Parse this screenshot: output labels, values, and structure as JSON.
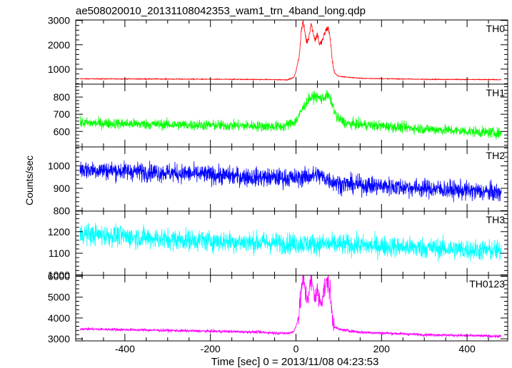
{
  "chart_data": {
    "type": "line",
    "title": "ae508020010_20131108042353_wam1_trn_4band_long.qdp",
    "xlabel": "Time [sec] 0 = 2013/11/08 04:23:53",
    "ylabel": "Counts/sec",
    "xlim": [
      -515,
      495
    ],
    "x_ticks": [
      -400,
      -200,
      0,
      200,
      400
    ],
    "grid": false,
    "legend": "none",
    "panels": [
      {
        "name": "TH0",
        "color": "#ff0000",
        "ylim": [
          380,
          3020
        ],
        "y_ticks": [
          1000,
          2000,
          3000
        ],
        "noise": 12,
        "points": [
          [
            -505,
            600
          ],
          [
            -300,
            590
          ],
          [
            -100,
            575
          ],
          [
            -20,
            560
          ],
          [
            -5,
            650
          ],
          [
            0,
            900
          ],
          [
            8,
            1600
          ],
          [
            12,
            2500
          ],
          [
            16,
            2950
          ],
          [
            20,
            2600
          ],
          [
            25,
            2100
          ],
          [
            30,
            2300
          ],
          [
            35,
            2900
          ],
          [
            40,
            2500
          ],
          [
            45,
            2200
          ],
          [
            50,
            2450
          ],
          [
            55,
            2000
          ],
          [
            60,
            2100
          ],
          [
            65,
            2350
          ],
          [
            70,
            2600
          ],
          [
            75,
            2700
          ],
          [
            80,
            2300
          ],
          [
            85,
            1300
          ],
          [
            90,
            850
          ],
          [
            100,
            700
          ],
          [
            150,
            620
          ],
          [
            300,
            580
          ],
          [
            480,
            565
          ]
        ]
      },
      {
        "name": "TH1",
        "color": "#00ff00",
        "ylim": [
          510,
          875
        ],
        "y_ticks": [
          600,
          700,
          800
        ],
        "noise": 22,
        "points": [
          [
            -505,
            650
          ],
          [
            -300,
            640
          ],
          [
            -100,
            632
          ],
          [
            -30,
            628
          ],
          [
            0,
            660
          ],
          [
            15,
            730
          ],
          [
            30,
            790
          ],
          [
            45,
            805
          ],
          [
            60,
            790
          ],
          [
            75,
            810
          ],
          [
            85,
            760
          ],
          [
            95,
            680
          ],
          [
            120,
            645
          ],
          [
            300,
            615
          ],
          [
            480,
            590
          ]
        ]
      },
      {
        "name": "TH2",
        "color": "#0000ff",
        "ylim": [
          798,
          1085
        ],
        "y_ticks": [
          800,
          900,
          1000
        ],
        "noise": 30,
        "points": [
          [
            -505,
            985
          ],
          [
            -300,
            970
          ],
          [
            -100,
            950
          ],
          [
            0,
            945
          ],
          [
            50,
            960
          ],
          [
            100,
            920
          ],
          [
            300,
            900
          ],
          [
            480,
            880
          ]
        ]
      },
      {
        "name": "TH3",
        "color": "#00ffff",
        "ylim": [
          998,
          1295
        ],
        "y_ticks": [
          1000,
          1100,
          1200
        ],
        "noise": 35,
        "points": [
          [
            -505,
            1190
          ],
          [
            -300,
            1165
          ],
          [
            -100,
            1150
          ],
          [
            100,
            1140
          ],
          [
            300,
            1125
          ],
          [
            480,
            1110
          ]
        ]
      },
      {
        "name": "TH0123",
        "color": "#ff00ff",
        "ylim": [
          2900,
          6050
        ],
        "y_ticks": [
          3000,
          4000,
          5000,
          6000
        ],
        "noise": 50,
        "points": [
          [
            -505,
            3480
          ],
          [
            -300,
            3400
          ],
          [
            -100,
            3330
          ],
          [
            -20,
            3260
          ],
          [
            -5,
            3350
          ],
          [
            0,
            3600
          ],
          [
            8,
            4300
          ],
          [
            12,
            5200
          ],
          [
            16,
            5950
          ],
          [
            20,
            5500
          ],
          [
            25,
            4900
          ],
          [
            30,
            5200
          ],
          [
            35,
            5800
          ],
          [
            40,
            5400
          ],
          [
            45,
            5000
          ],
          [
            50,
            5300
          ],
          [
            55,
            4800
          ],
          [
            60,
            4900
          ],
          [
            65,
            5300
          ],
          [
            70,
            5600
          ],
          [
            75,
            5800
          ],
          [
            80,
            5200
          ],
          [
            85,
            4000
          ],
          [
            90,
            3600
          ],
          [
            100,
            3450
          ],
          [
            150,
            3320
          ],
          [
            300,
            3200
          ],
          [
            480,
            3120
          ]
        ]
      }
    ]
  }
}
